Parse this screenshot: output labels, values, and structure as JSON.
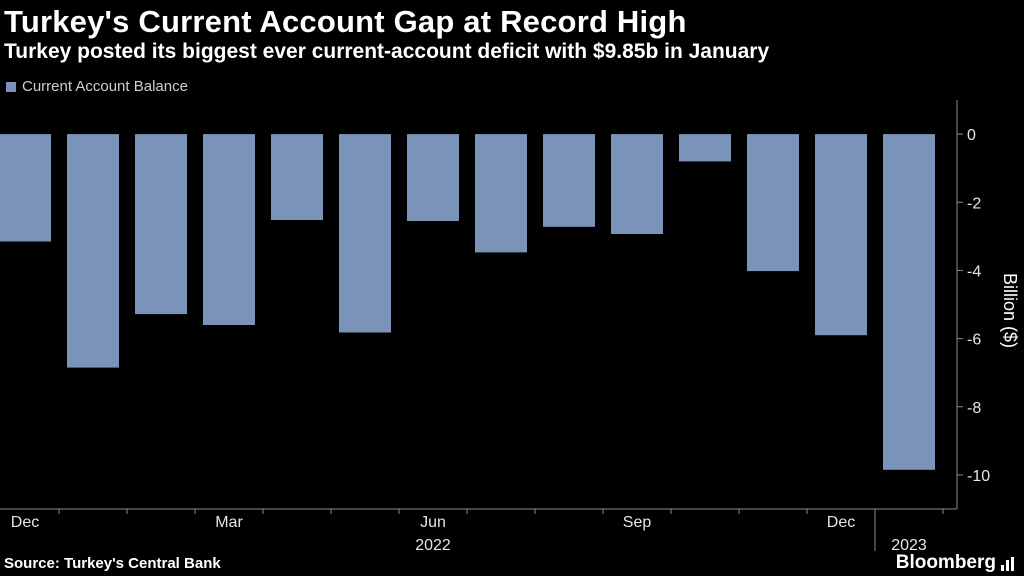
{
  "header": {
    "title": "Turkey's Current Account Gap at Record High",
    "subtitle": "Turkey posted its biggest ever current-account deficit with $9.85b in January"
  },
  "legend": {
    "label": "Current Account Balance",
    "color": "#7c93b9"
  },
  "footer": {
    "source": "Source: Turkey's Central Bank",
    "brand": "Bloomberg"
  },
  "chart_data": {
    "type": "bar",
    "title": "Turkey's Current Account Gap at Record High",
    "subtitle": "Turkey posted its biggest ever current-account deficit with $9.85b in January",
    "categories": [
      "Dec 2021",
      "Jan 2022",
      "Feb 2022",
      "Mar 2022",
      "Apr 2022",
      "May 2022",
      "Jun 2022",
      "Jul 2022",
      "Aug 2022",
      "Sep 2022",
      "Oct 2022",
      "Nov 2022",
      "Dec 2022",
      "Jan 2023"
    ],
    "series": [
      {
        "name": "Current Account Balance",
        "color": "#7c93b9",
        "values": [
          -3.15,
          -6.85,
          -5.28,
          -5.6,
          -2.52,
          -5.82,
          -2.55,
          -3.47,
          -2.72,
          -2.93,
          -0.8,
          -4.02,
          -5.9,
          -9.85
        ]
      }
    ],
    "xlabel": "",
    "ylabel": "Billion ($)",
    "ylim": [
      -11,
      1
    ],
    "yticks": [
      0,
      -2,
      -4,
      -6,
      -8,
      -10
    ],
    "x_tick_labels": [
      {
        "category": "Dec 2021",
        "label": "Dec"
      },
      {
        "category": "Mar 2022",
        "label": "Mar"
      },
      {
        "category": "Jun 2022",
        "label": "Jun"
      },
      {
        "category": "Sep 2022",
        "label": "Sep"
      },
      {
        "category": "Dec 2022",
        "label": "Dec"
      }
    ],
    "x_year_labels": [
      {
        "category": "Jun 2022",
        "label": "2022"
      },
      {
        "category": "Jan 2023",
        "label": "2023"
      }
    ],
    "y_axis_position": "right",
    "legend_position": "top-left",
    "grid": false
  }
}
